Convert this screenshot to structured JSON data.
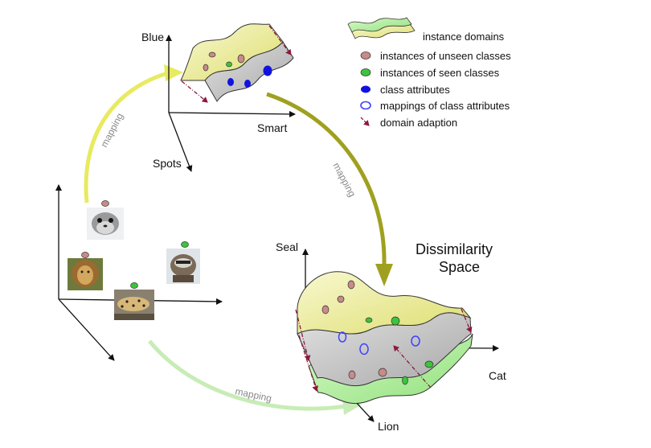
{
  "legend": {
    "instance_domains": "instance domains",
    "unseen": "instances of unseen classes",
    "seen": "instances of seen classes",
    "attributes": "class attributes",
    "mappings": "mappings of class attributes",
    "adaption": "domain adaption"
  },
  "attribute_space": {
    "axis_blue": "Blue",
    "axis_smart": "Smart",
    "axis_spots": "Spots"
  },
  "dissimilarity_space": {
    "title_line1": "Dissimilarity",
    "title_line2": "Space",
    "axis_seal": "Seal",
    "axis_cat": "Cat",
    "axis_lion": "Lion"
  },
  "arrows": {
    "mapping_left": "mapping",
    "mapping_center": "mapping",
    "mapping_bottom": "mapping"
  },
  "images": [
    "seal-photo",
    "raccoon-photo",
    "lion-photo",
    "leopard-photo"
  ],
  "colors": {
    "unseen": "#c98a8a",
    "seen": "#3cc43c",
    "attribute": "#1212e0",
    "mapping": "#4040ff",
    "adaption": "#8b1a3a",
    "yellow_domain": "#eef0a0",
    "gray_domain": "#c8c8c8",
    "green_domain": "#b8f0a8"
  }
}
